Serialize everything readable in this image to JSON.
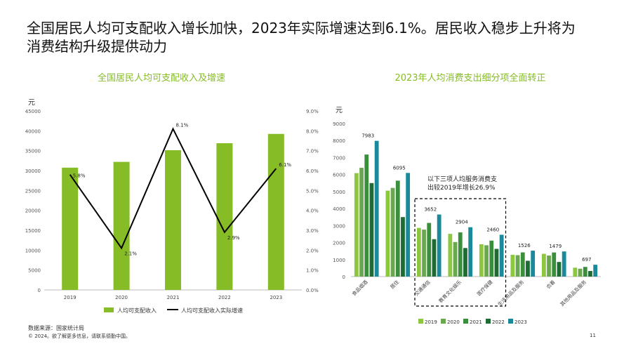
{
  "headline": "全国居民人均可支配收入增长加快，2023年实际增速达到6.1%。居民收入稳步上升将为消费结构升级提供动力",
  "footer": {
    "source": "数据来源：国家统计局",
    "copyright": "© 2024。欲了解更多信息，请联系德勤中国。",
    "page": "11"
  },
  "colors": {
    "accent": "#86bc25",
    "series": [
      "#8dc63f",
      "#6aa84f",
      "#3b8e3b",
      "#1e6b34",
      "#1a8a9a"
    ],
    "line": "#000000"
  },
  "chart_data": [
    {
      "type": "bar",
      "title": "全国居民人均可支配收入及增速",
      "ylabel": "元",
      "categories": [
        "2019",
        "2020",
        "2021",
        "2022",
        "2023"
      ],
      "ylim": [
        0,
        45000
      ],
      "yticks": [
        "0",
        "5000",
        "10000",
        "15000",
        "20000",
        "25000",
        "30000",
        "35000",
        "40000",
        "45000"
      ],
      "y2lim": [
        0,
        9
      ],
      "y2ticks": [
        "0.0%",
        "1.0%",
        "2.0%",
        "3.0%",
        "4.0%",
        "5.0%",
        "6.0%",
        "7.0%",
        "8.0%",
        "9.0%"
      ],
      "series": [
        {
          "name": "人均可支配收入",
          "type": "bar",
          "axis": "left",
          "values": [
            30733,
            32189,
            35128,
            36883,
            39218
          ]
        },
        {
          "name": "人均可支配收入实际增速",
          "type": "line",
          "axis": "right",
          "values": [
            5.8,
            2.1,
            8.1,
            2.9,
            6.1
          ],
          "labels": [
            "5.8%",
            "2.1%",
            "8.1%",
            "2.9%",
            "6.1%"
          ]
        }
      ],
      "grid": false,
      "legend": "bottom"
    },
    {
      "type": "bar",
      "title": "2023年人均消费支出细分项全面转正",
      "ylabel": "元",
      "categories": [
        "食品烟酒",
        "居住",
        "交通通信",
        "教育文化娱乐",
        "医疗保健",
        "生活用品及服务",
        "衣着",
        "其他用品及服务"
      ],
      "ylim": [
        0,
        9000
      ],
      "yticks": [
        "0",
        "1000",
        "2000",
        "3000",
        "4000",
        "5000",
        "6000",
        "7000",
        "8000",
        "9000"
      ],
      "series": [
        {
          "name": "2019",
          "values": [
            6084,
            5055,
            2862,
            2513,
            1902,
            1281,
            1338,
            524
          ]
        },
        {
          "name": "2020",
          "values": [
            6397,
            5215,
            2762,
            2032,
            1843,
            1260,
            1238,
            462
          ]
        },
        {
          "name": "2021",
          "values": [
            7178,
            5641,
            3156,
            2599,
            2115,
            1423,
            1419,
            569
          ]
        },
        {
          "name": "2022",
          "values": [
            5500,
            3500,
            2200,
            1680,
            1630,
            930,
            860,
            330
          ]
        },
        {
          "name": "2023",
          "values": [
            7983,
            6095,
            3652,
            2904,
            2460,
            1526,
            1479,
            697
          ]
        }
      ],
      "value_labels": [
        "7983",
        "6095",
        "3652",
        "2904",
        "2460",
        "1526",
        "1479",
        "697"
      ],
      "annotation": "以下三项人均服务消费支出较2019年增长26.9%",
      "annotation_lines": [
        "以下三项人均服务消费支",
        "出较2019年增长26.9%"
      ],
      "grid": false,
      "legend": "bottom"
    }
  ]
}
